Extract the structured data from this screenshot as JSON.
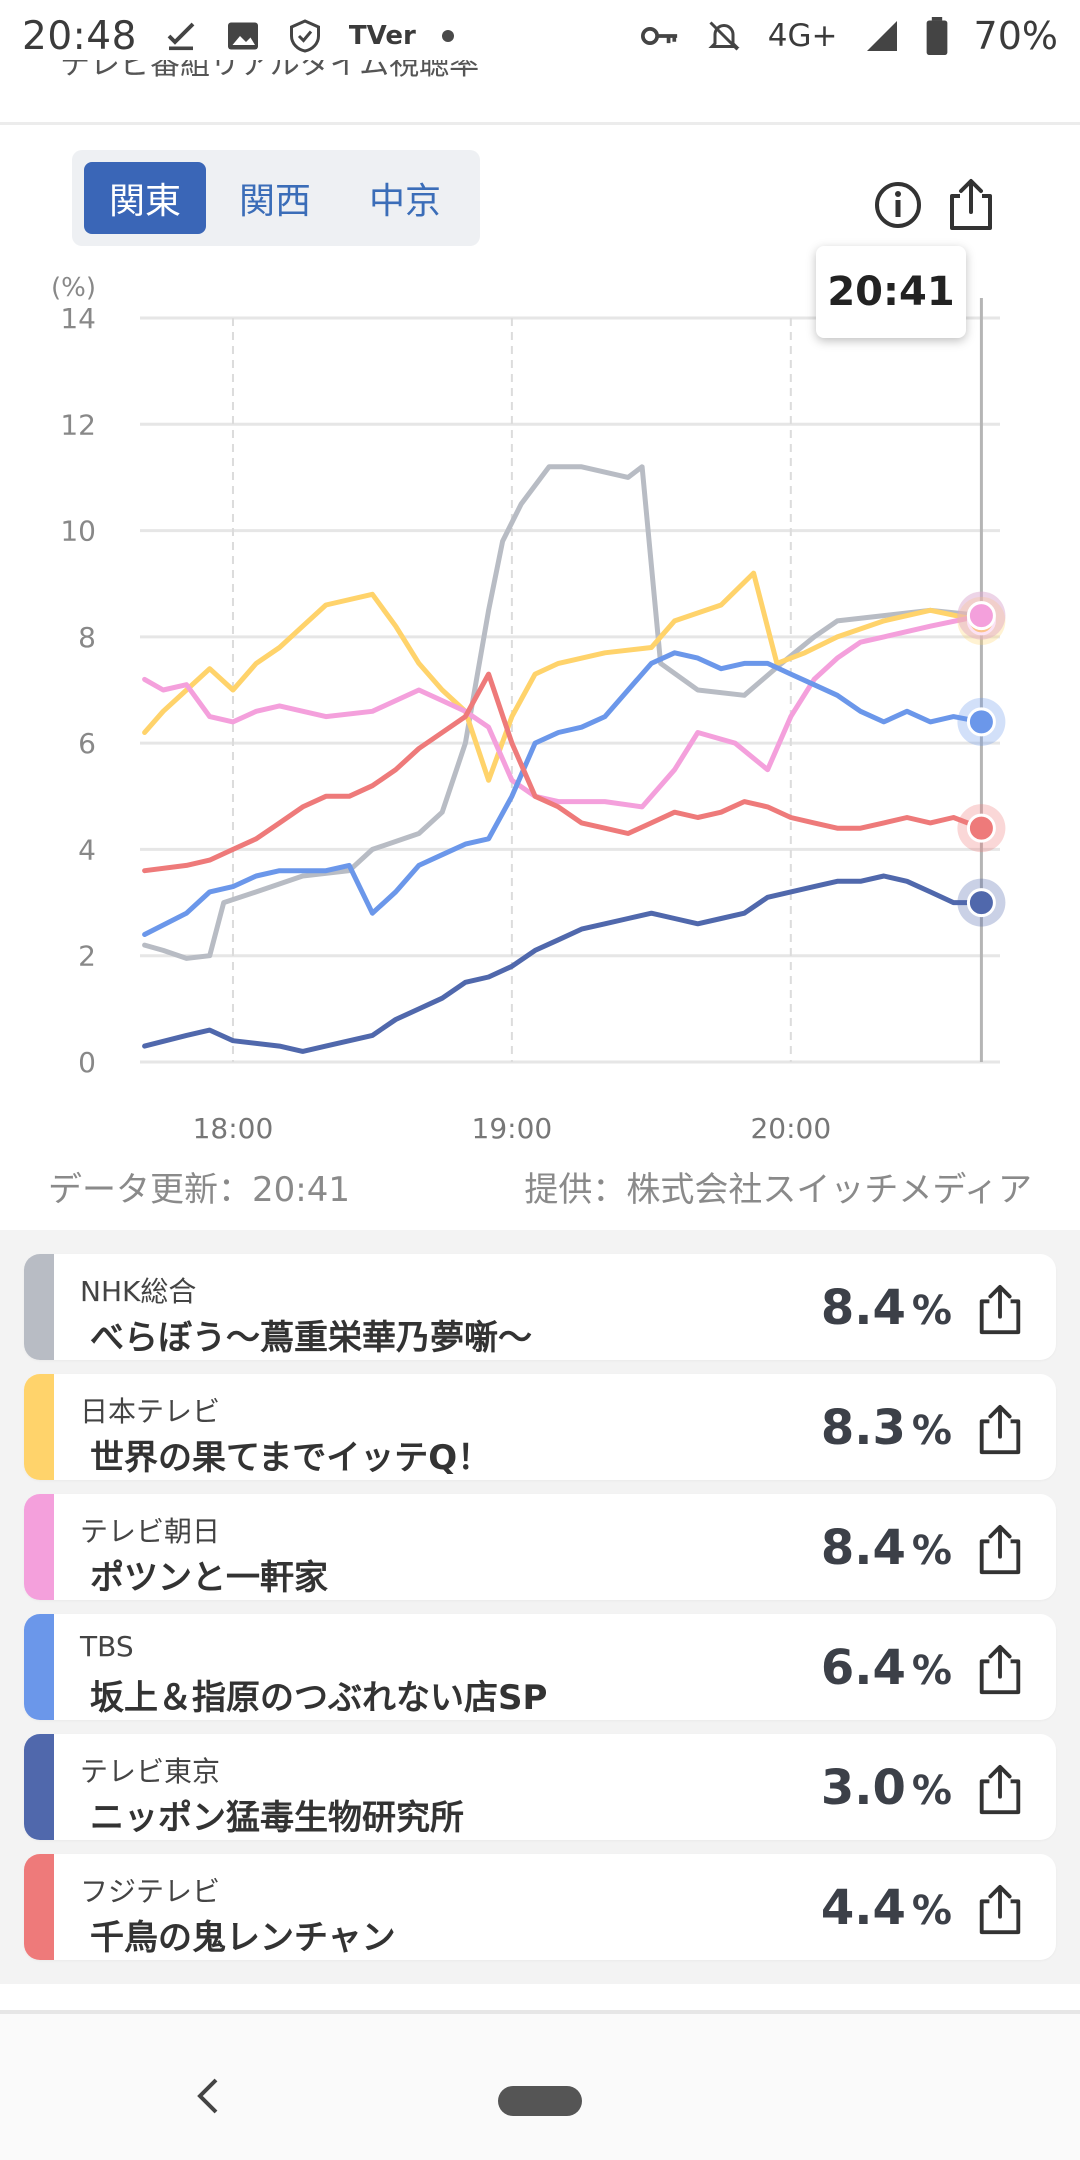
{
  "status_bar": {
    "time": "20:48",
    "tver": "TVer",
    "network": "4G+",
    "battery": "70%",
    "icons": [
      "download-done-icon",
      "image-icon",
      "shield-icon",
      "tver-icon",
      "dot-icon",
      "key-icon",
      "mute-bell-icon",
      "signal-icon",
      "battery-icon"
    ]
  },
  "header": {
    "clipped_title": "テレビ番組リアルタイム視聴率"
  },
  "regions": {
    "items": [
      "関東",
      "関西",
      "中京"
    ],
    "active": "関東"
  },
  "tooltip": {
    "time": "20:41"
  },
  "chart_data": {
    "type": "line",
    "unit_label": "(%)",
    "ylim": [
      0,
      14
    ],
    "yticks": [
      "0",
      "2",
      "4",
      "6",
      "8",
      "10",
      "12",
      "14"
    ],
    "xlim": [
      "17:40",
      "20:45"
    ],
    "xticks": [
      "18:00",
      "19:00",
      "20:00"
    ],
    "grid": true,
    "cursor_time": "20:41",
    "series": [
      {
        "name": "NHK総合",
        "color": "#b8bcc4",
        "points": [
          [
            "17:41",
            2.2
          ],
          [
            "17:45",
            2.1
          ],
          [
            "17:50",
            1.95
          ],
          [
            "17:55",
            2.0
          ],
          [
            "17:58",
            3.0
          ],
          [
            "18:05",
            3.2
          ],
          [
            "18:15",
            3.5
          ],
          [
            "18:25",
            3.6
          ],
          [
            "18:30",
            4.0
          ],
          [
            "18:40",
            4.3
          ],
          [
            "18:45",
            4.7
          ],
          [
            "18:50",
            6.0
          ],
          [
            "18:55",
            8.5
          ],
          [
            "18:58",
            9.8
          ],
          [
            "19:02",
            10.5
          ],
          [
            "19:08",
            11.2
          ],
          [
            "19:15",
            11.2
          ],
          [
            "19:25",
            11.0
          ],
          [
            "19:28",
            11.2
          ],
          [
            "19:32",
            7.5
          ],
          [
            "19:40",
            7.0
          ],
          [
            "19:50",
            6.9
          ],
          [
            "19:58",
            7.5
          ],
          [
            "20:05",
            8.0
          ],
          [
            "20:10",
            8.3
          ],
          [
            "20:20",
            8.4
          ],
          [
            "20:30",
            8.5
          ],
          [
            "20:41",
            8.4
          ]
        ]
      },
      {
        "name": "日本テレビ",
        "color": "#ffd36b",
        "points": [
          [
            "17:41",
            6.2
          ],
          [
            "17:45",
            6.6
          ],
          [
            "17:50",
            7.0
          ],
          [
            "17:55",
            7.4
          ],
          [
            "18:00",
            7.0
          ],
          [
            "18:05",
            7.5
          ],
          [
            "18:10",
            7.8
          ],
          [
            "18:15",
            8.2
          ],
          [
            "18:20",
            8.6
          ],
          [
            "18:30",
            8.8
          ],
          [
            "18:35",
            8.2
          ],
          [
            "18:40",
            7.5
          ],
          [
            "18:45",
            7.0
          ],
          [
            "18:50",
            6.6
          ],
          [
            "18:55",
            5.3
          ],
          [
            "19:00",
            6.5
          ],
          [
            "19:05",
            7.3
          ],
          [
            "19:10",
            7.5
          ],
          [
            "19:20",
            7.7
          ],
          [
            "19:30",
            7.8
          ],
          [
            "19:35",
            8.3
          ],
          [
            "19:45",
            8.6
          ],
          [
            "19:52",
            9.2
          ],
          [
            "19:57",
            7.5
          ],
          [
            "20:03",
            7.7
          ],
          [
            "20:10",
            8.0
          ],
          [
            "20:20",
            8.3
          ],
          [
            "20:30",
            8.5
          ],
          [
            "20:41",
            8.3
          ]
        ]
      },
      {
        "name": "テレビ朝日",
        "color": "#f4a0dc",
        "points": [
          [
            "17:41",
            7.2
          ],
          [
            "17:45",
            7.0
          ],
          [
            "17:50",
            7.1
          ],
          [
            "17:55",
            6.5
          ],
          [
            "18:00",
            6.4
          ],
          [
            "18:05",
            6.6
          ],
          [
            "18:10",
            6.7
          ],
          [
            "18:20",
            6.5
          ],
          [
            "18:30",
            6.6
          ],
          [
            "18:35",
            6.8
          ],
          [
            "18:40",
            7.0
          ],
          [
            "18:45",
            6.8
          ],
          [
            "18:50",
            6.6
          ],
          [
            "18:55",
            6.3
          ],
          [
            "19:00",
            5.3
          ],
          [
            "19:05",
            5.0
          ],
          [
            "19:10",
            4.9
          ],
          [
            "19:20",
            4.9
          ],
          [
            "19:28",
            4.8
          ],
          [
            "19:35",
            5.5
          ],
          [
            "19:40",
            6.2
          ],
          [
            "19:48",
            6.0
          ],
          [
            "19:55",
            5.5
          ],
          [
            "20:00",
            6.5
          ],
          [
            "20:05",
            7.2
          ],
          [
            "20:10",
            7.6
          ],
          [
            "20:15",
            7.9
          ],
          [
            "20:20",
            8.0
          ],
          [
            "20:30",
            8.2
          ],
          [
            "20:41",
            8.4
          ]
        ]
      },
      {
        "name": "TBS",
        "color": "#6b97ea",
        "points": [
          [
            "17:41",
            2.4
          ],
          [
            "17:50",
            2.8
          ],
          [
            "17:55",
            3.2
          ],
          [
            "18:00",
            3.3
          ],
          [
            "18:05",
            3.5
          ],
          [
            "18:10",
            3.6
          ],
          [
            "18:20",
            3.6
          ],
          [
            "18:25",
            3.7
          ],
          [
            "18:30",
            2.8
          ],
          [
            "18:35",
            3.2
          ],
          [
            "18:40",
            3.7
          ],
          [
            "18:45",
            3.9
          ],
          [
            "18:50",
            4.1
          ],
          [
            "18:55",
            4.2
          ],
          [
            "19:00",
            5.0
          ],
          [
            "19:05",
            6.0
          ],
          [
            "19:10",
            6.2
          ],
          [
            "19:15",
            6.3
          ],
          [
            "19:20",
            6.5
          ],
          [
            "19:25",
            7.0
          ],
          [
            "19:30",
            7.5
          ],
          [
            "19:35",
            7.7
          ],
          [
            "19:40",
            7.6
          ],
          [
            "19:45",
            7.4
          ],
          [
            "19:50",
            7.5
          ],
          [
            "19:55",
            7.5
          ],
          [
            "20:00",
            7.3
          ],
          [
            "20:05",
            7.1
          ],
          [
            "20:10",
            6.9
          ],
          [
            "20:15",
            6.6
          ],
          [
            "20:20",
            6.4
          ],
          [
            "20:25",
            6.6
          ],
          [
            "20:30",
            6.4
          ],
          [
            "20:35",
            6.5
          ],
          [
            "20:41",
            6.4
          ]
        ]
      },
      {
        "name": "テレビ東京",
        "color": "#5068ac",
        "points": [
          [
            "17:41",
            0.3
          ],
          [
            "17:50",
            0.5
          ],
          [
            "17:55",
            0.6
          ],
          [
            "18:00",
            0.4
          ],
          [
            "18:10",
            0.3
          ],
          [
            "18:15",
            0.2
          ],
          [
            "18:20",
            0.3
          ],
          [
            "18:30",
            0.5
          ],
          [
            "18:35",
            0.8
          ],
          [
            "18:40",
            1.0
          ],
          [
            "18:45",
            1.2
          ],
          [
            "18:50",
            1.5
          ],
          [
            "18:55",
            1.6
          ],
          [
            "19:00",
            1.8
          ],
          [
            "19:05",
            2.1
          ],
          [
            "19:10",
            2.3
          ],
          [
            "19:15",
            2.5
          ],
          [
            "19:20",
            2.6
          ],
          [
            "19:25",
            2.7
          ],
          [
            "19:30",
            2.8
          ],
          [
            "19:35",
            2.7
          ],
          [
            "19:40",
            2.6
          ],
          [
            "19:45",
            2.7
          ],
          [
            "19:50",
            2.8
          ],
          [
            "19:55",
            3.1
          ],
          [
            "20:00",
            3.2
          ],
          [
            "20:05",
            3.3
          ],
          [
            "20:10",
            3.4
          ],
          [
            "20:15",
            3.4
          ],
          [
            "20:20",
            3.5
          ],
          [
            "20:25",
            3.4
          ],
          [
            "20:30",
            3.2
          ],
          [
            "20:35",
            3.0
          ],
          [
            "20:41",
            3.0
          ]
        ]
      },
      {
        "name": "フジテレビ",
        "color": "#ee7a7a",
        "points": [
          [
            "17:41",
            3.6
          ],
          [
            "17:50",
            3.7
          ],
          [
            "17:55",
            3.8
          ],
          [
            "18:00",
            4.0
          ],
          [
            "18:05",
            4.2
          ],
          [
            "18:10",
            4.5
          ],
          [
            "18:15",
            4.8
          ],
          [
            "18:20",
            5.0
          ],
          [
            "18:25",
            5.0
          ],
          [
            "18:30",
            5.2
          ],
          [
            "18:35",
            5.5
          ],
          [
            "18:40",
            5.9
          ],
          [
            "18:45",
            6.2
          ],
          [
            "18:50",
            6.5
          ],
          [
            "18:55",
            7.3
          ],
          [
            "19:00",
            6.0
          ],
          [
            "19:05",
            5.0
          ],
          [
            "19:10",
            4.8
          ],
          [
            "19:15",
            4.5
          ],
          [
            "19:20",
            4.4
          ],
          [
            "19:25",
            4.3
          ],
          [
            "19:30",
            4.5
          ],
          [
            "19:35",
            4.7
          ],
          [
            "19:40",
            4.6
          ],
          [
            "19:45",
            4.7
          ],
          [
            "19:50",
            4.9
          ],
          [
            "19:55",
            4.8
          ],
          [
            "20:00",
            4.6
          ],
          [
            "20:05",
            4.5
          ],
          [
            "20:10",
            4.4
          ],
          [
            "20:15",
            4.4
          ],
          [
            "20:20",
            4.5
          ],
          [
            "20:25",
            4.6
          ],
          [
            "20:30",
            4.5
          ],
          [
            "20:35",
            4.6
          ],
          [
            "20:41",
            4.4
          ]
        ]
      }
    ]
  },
  "credits": {
    "updated": "データ更新：20:41",
    "provider": "提供：株式会社スイッチメディア"
  },
  "programs": [
    {
      "channel": "NHK総合",
      "title": "べらぼう～蔦重栄華乃夢噺～",
      "rating": "8.4",
      "unit": "%",
      "color": "#b8bcc4"
    },
    {
      "channel": "日本テレビ",
      "title": "世界の果てまでイッテQ！",
      "rating": "8.3",
      "unit": "%",
      "color": "#ffd36b"
    },
    {
      "channel": "テレビ朝日",
      "title": "ポツンと一軒家",
      "rating": "8.4",
      "unit": "%",
      "color": "#f4a0dc"
    },
    {
      "channel": "TBS",
      "title": "坂上＆指原のつぶれない店SP",
      "rating": "6.4",
      "unit": "%",
      "color": "#6b97ea"
    },
    {
      "channel": "テレビ東京",
      "title": "ニッポン猛毒生物研究所",
      "rating": "3.0",
      "unit": "%",
      "color": "#5068ac"
    },
    {
      "channel": "フジテレビ",
      "title": "千鳥の鬼レンチャン",
      "rating": "4.4",
      "unit": "%",
      "color": "#ee7a7a"
    }
  ]
}
